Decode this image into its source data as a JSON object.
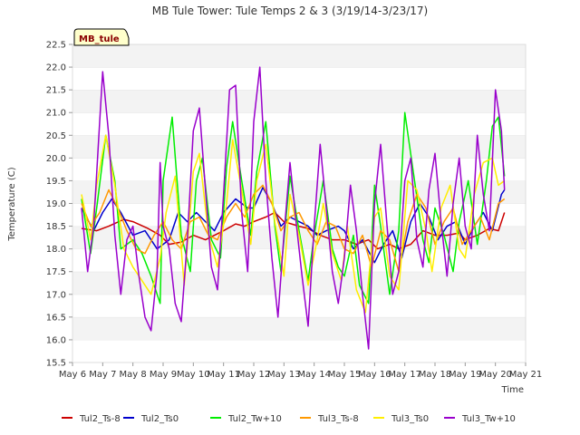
{
  "chart_data": {
    "type": "line",
    "title": "MB Tule Tower: Tule Temps 2 & 3 (3/19/14-3/23/17)",
    "xlabel": "Time",
    "ylabel": "Temperature (C)",
    "site_tag": "MB_tule",
    "xlim": [
      6,
      21
    ],
    "ylim": [
      15.5,
      22.5
    ],
    "x_ticks": [
      6,
      7,
      8,
      9,
      10,
      11,
      12,
      13,
      14,
      15,
      16,
      17,
      18,
      19,
      20,
      21
    ],
    "x_tick_labels": [
      "May 6",
      "May 7",
      "May 8",
      "May 9",
      "May 10",
      "May 11",
      "May 12",
      "May 13",
      "May 14",
      "May 15",
      "May 16",
      "May 17",
      "May 18",
      "May 19",
      "May 20",
      "May 21"
    ],
    "y_ticks": [
      15.5,
      16.0,
      16.5,
      17.0,
      17.5,
      18.0,
      18.5,
      19.0,
      19.5,
      20.0,
      20.5,
      21.0,
      21.5,
      22.0,
      22.5
    ],
    "y_tick_labels": [
      "15.5",
      "16.0",
      "16.5",
      "17.0",
      "17.5",
      "18.0",
      "18.5",
      "19.0",
      "19.5",
      "20.0",
      "20.5",
      "21.0",
      "21.5",
      "22.0",
      "22.5"
    ],
    "grid": "horizontal bands",
    "legend_position": "bottom",
    "series": [
      {
        "name": "Tul2_Ts-8",
        "color": "#cc0000",
        "x": [
          6.3,
          6.8,
          7.2,
          7.7,
          8.0,
          8.5,
          8.9,
          9.2,
          9.6,
          10.0,
          10.4,
          10.7,
          11.0,
          11.4,
          11.7,
          12.0,
          12.4,
          12.7,
          13.0,
          13.5,
          13.8,
          14.2,
          14.6,
          15.0,
          15.4,
          15.8,
          16.1,
          16.5,
          16.8,
          17.2,
          17.6,
          18.0,
          18.4,
          18.8,
          19.0,
          19.4,
          19.8,
          20.1,
          20.3
        ],
        "y": [
          18.45,
          18.4,
          18.5,
          18.65,
          18.6,
          18.45,
          18.3,
          18.1,
          18.15,
          18.3,
          18.2,
          18.3,
          18.4,
          18.55,
          18.5,
          18.6,
          18.7,
          18.8,
          18.6,
          18.5,
          18.45,
          18.3,
          18.2,
          18.2,
          18.1,
          18.2,
          18.0,
          18.1,
          18.0,
          18.1,
          18.4,
          18.3,
          18.3,
          18.35,
          18.2,
          18.3,
          18.45,
          18.4,
          18.8
        ]
      },
      {
        "name": "Tul2_Ts0",
        "color": "#0000cc",
        "x": [
          6.3,
          6.7,
          7.0,
          7.3,
          7.6,
          8.0,
          8.4,
          8.8,
          9.2,
          9.5,
          9.8,
          10.1,
          10.4,
          10.7,
          11.0,
          11.4,
          11.8,
          12.0,
          12.3,
          12.6,
          12.9,
          13.2,
          13.5,
          13.8,
          14.1,
          14.4,
          14.8,
          15.0,
          15.3,
          15.6,
          16.0,
          16.3,
          16.6,
          16.9,
          17.2,
          17.5,
          17.8,
          18.1,
          18.4,
          18.7,
          19.0,
          19.3,
          19.6,
          19.9,
          20.2,
          20.3
        ],
        "y": [
          18.9,
          18.4,
          18.8,
          19.1,
          18.8,
          18.3,
          18.4,
          18.0,
          18.2,
          18.8,
          18.6,
          18.8,
          18.6,
          18.4,
          18.8,
          19.1,
          18.9,
          18.9,
          19.35,
          19.0,
          18.5,
          18.7,
          18.6,
          18.5,
          18.3,
          18.4,
          18.5,
          18.4,
          18.0,
          18.2,
          17.7,
          18.1,
          18.4,
          17.8,
          18.6,
          19.0,
          18.7,
          18.2,
          18.5,
          18.6,
          18.1,
          18.5,
          18.8,
          18.4,
          19.2,
          19.3
        ]
      },
      {
        "name": "Tul2_Tw+10",
        "color": "#00ee00",
        "x": [
          6.3,
          6.6,
          6.8,
          7.1,
          7.4,
          7.6,
          8.0,
          8.3,
          8.6,
          8.9,
          9.0,
          9.3,
          9.6,
          9.9,
          10.1,
          10.3,
          10.6,
          10.9,
          11.1,
          11.3,
          11.6,
          11.9,
          12.1,
          12.4,
          12.7,
          12.9,
          13.2,
          13.5,
          13.8,
          14.0,
          14.3,
          14.6,
          14.8,
          15.0,
          15.3,
          15.5,
          15.8,
          16.0,
          16.2,
          16.5,
          16.8,
          17.0,
          17.3,
          17.6,
          17.8,
          18.0,
          18.3,
          18.6,
          18.8,
          19.1,
          19.4,
          19.7,
          19.9,
          20.1,
          20.3
        ],
        "y": [
          19.1,
          17.9,
          18.9,
          20.5,
          19.5,
          18.0,
          18.2,
          17.9,
          17.4,
          16.8,
          19.5,
          20.9,
          18.3,
          17.5,
          19.5,
          20.0,
          18.2,
          17.8,
          19.8,
          20.8,
          19.5,
          18.3,
          19.7,
          20.8,
          18.5,
          17.5,
          19.6,
          18.4,
          17.3,
          18.3,
          19.5,
          18.0,
          17.6,
          17.4,
          18.3,
          17.2,
          16.8,
          19.4,
          18.5,
          17.0,
          18.4,
          21.0,
          19.6,
          18.2,
          17.7,
          18.9,
          18.3,
          17.5,
          18.6,
          19.5,
          18.1,
          19.5,
          20.7,
          20.9,
          19.6
        ]
      },
      {
        "name": "Tul3_Ts-8",
        "color": "#ff9900",
        "x": [
          6.3,
          6.6,
          6.9,
          7.2,
          7.5,
          7.8,
          8.1,
          8.4,
          8.7,
          9.0,
          9.3,
          9.6,
          9.9,
          10.2,
          10.5,
          10.8,
          11.1,
          11.4,
          11.7,
          12.0,
          12.3,
          12.6,
          12.9,
          13.2,
          13.5,
          13.8,
          14.1,
          14.4,
          14.7,
          15.0,
          15.3,
          15.6,
          15.9,
          16.2,
          16.5,
          16.8,
          17.1,
          17.4,
          17.7,
          18.0,
          18.3,
          18.6,
          18.9,
          19.2,
          19.5,
          19.8,
          20.1,
          20.3
        ],
        "y": [
          19.0,
          18.5,
          18.8,
          19.3,
          18.9,
          18.4,
          18.0,
          17.9,
          18.3,
          18.6,
          18.2,
          18.0,
          18.6,
          18.7,
          18.3,
          18.2,
          18.7,
          19.0,
          18.7,
          19.2,
          19.4,
          19.0,
          18.4,
          18.7,
          18.8,
          18.4,
          18.1,
          18.6,
          18.5,
          18.0,
          17.9,
          18.3,
          17.6,
          18.4,
          18.2,
          17.5,
          18.6,
          19.2,
          18.9,
          18.1,
          18.6,
          18.9,
          18.1,
          18.4,
          18.7,
          18.2,
          19.0,
          19.1
        ]
      },
      {
        "name": "Tul3_Ts0",
        "color": "#ffee00",
        "x": [
          6.3,
          6.6,
          6.8,
          7.1,
          7.4,
          7.7,
          8.0,
          8.3,
          8.6,
          8.9,
          9.1,
          9.4,
          9.7,
          10.0,
          10.2,
          10.5,
          10.8,
          11.1,
          11.3,
          11.6,
          11.9,
          12.1,
          12.4,
          12.7,
          13.0,
          13.2,
          13.5,
          13.8,
          14.1,
          14.3,
          14.6,
          14.9,
          15.1,
          15.4,
          15.7,
          16.0,
          16.2,
          16.5,
          16.8,
          17.1,
          17.4,
          17.7,
          17.9,
          18.2,
          18.5,
          18.8,
          19.0,
          19.3,
          19.6,
          19.9,
          20.1,
          20.3
        ],
        "y": [
          19.2,
          18.2,
          19.4,
          20.5,
          19.4,
          18.0,
          17.6,
          17.3,
          17.0,
          17.8,
          18.8,
          19.6,
          17.2,
          19.7,
          20.1,
          18.3,
          17.6,
          19.0,
          20.4,
          19.3,
          18.1,
          19.5,
          20.3,
          18.6,
          17.4,
          19.2,
          18.3,
          17.2,
          18.2,
          19.0,
          17.9,
          17.3,
          18.5,
          17.1,
          16.6,
          18.7,
          18.9,
          17.4,
          17.1,
          19.5,
          19.3,
          18.4,
          17.5,
          18.9,
          19.4,
          18.0,
          17.8,
          19.2,
          19.9,
          20.0,
          19.4,
          19.5
        ]
      },
      {
        "name": "Tul3_Tw+10",
        "color": "#9900cc",
        "x": [
          6.3,
          6.5,
          6.7,
          6.9,
          7.0,
          7.2,
          7.4,
          7.6,
          7.8,
          8.0,
          8.2,
          8.4,
          8.6,
          8.8,
          8.9,
          9.0,
          9.2,
          9.4,
          9.6,
          9.8,
          10.0,
          10.2,
          10.4,
          10.6,
          10.8,
          11.0,
          11.2,
          11.4,
          11.6,
          11.8,
          12.0,
          12.2,
          12.4,
          12.6,
          12.8,
          13.0,
          13.2,
          13.4,
          13.6,
          13.8,
          14.0,
          14.2,
          14.4,
          14.6,
          14.8,
          15.0,
          15.2,
          15.4,
          15.6,
          15.8,
          16.0,
          16.2,
          16.4,
          16.6,
          16.8,
          17.0,
          17.2,
          17.4,
          17.6,
          17.8,
          18.0,
          18.2,
          18.4,
          18.6,
          18.8,
          19.0,
          19.2,
          19.4,
          19.6,
          19.8,
          20.0,
          20.2,
          20.3
        ],
        "y": [
          18.9,
          17.5,
          18.5,
          20.8,
          21.9,
          20.5,
          18.3,
          17.0,
          18.2,
          18.5,
          17.4,
          16.5,
          16.2,
          17.5,
          19.9,
          18.5,
          18.0,
          16.8,
          16.4,
          18.2,
          20.6,
          21.1,
          19.3,
          17.6,
          17.1,
          19.2,
          21.5,
          21.6,
          18.8,
          17.5,
          20.8,
          22.0,
          19.5,
          17.8,
          16.5,
          18.3,
          19.9,
          18.6,
          17.4,
          16.3,
          18.5,
          20.3,
          18.9,
          17.5,
          16.8,
          17.8,
          19.4,
          18.4,
          17.0,
          15.8,
          19.0,
          20.3,
          18.6,
          17.0,
          17.5,
          19.5,
          20.0,
          18.2,
          17.6,
          19.3,
          20.1,
          18.6,
          17.4,
          19.0,
          20.0,
          18.5,
          18.0,
          20.5,
          19.2,
          18.4,
          21.5,
          20.6,
          19.3
        ]
      }
    ]
  }
}
